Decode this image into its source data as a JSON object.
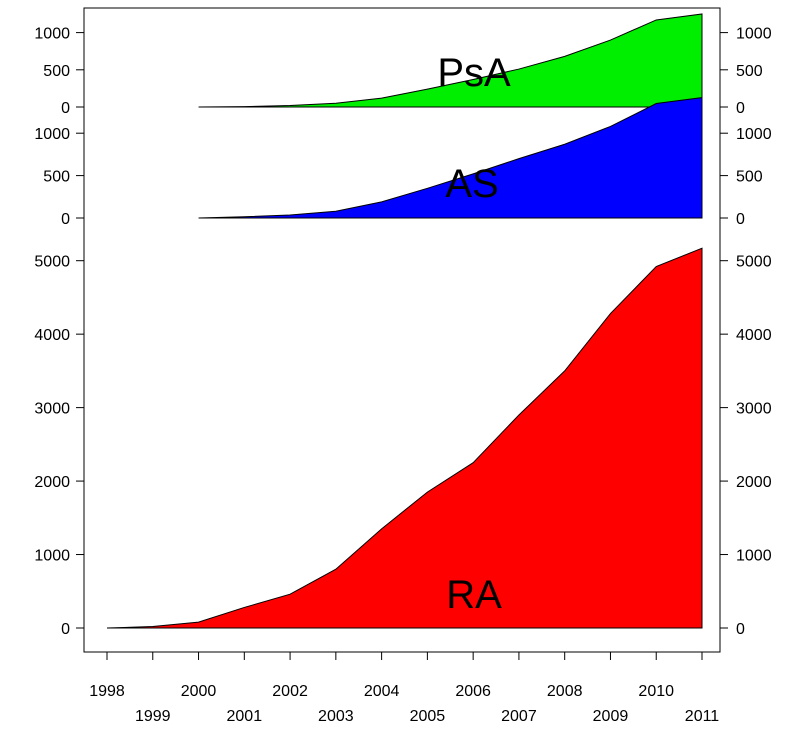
{
  "chart_data": {
    "type": "area",
    "x": [
      1998,
      1999,
      2000,
      2001,
      2002,
      2003,
      2004,
      2005,
      2006,
      2007,
      2008,
      2009,
      2010,
      2011
    ],
    "x_tick_labels": [
      "1998",
      "1999",
      "2000",
      "2001",
      "2002",
      "2003",
      "2004",
      "2005",
      "2006",
      "2007",
      "2008",
      "2009",
      "2010",
      "2011"
    ],
    "xlim": [
      1998,
      2011
    ],
    "grid": false,
    "legend": "none",
    "panels": [
      {
        "name": "PsA",
        "color": "#00ee00",
        "ylim": [
          0,
          1250
        ],
        "y_ticks": [
          0,
          500,
          1000
        ],
        "y_tick_labels": [
          "0",
          "500",
          "1000"
        ],
        "x": [
          2000,
          2001,
          2002,
          2003,
          2004,
          2005,
          2006,
          2007,
          2008,
          2009,
          2010,
          2011
        ],
        "values": [
          0,
          5,
          20,
          50,
          120,
          240,
          370,
          510,
          680,
          900,
          1170,
          1250
        ]
      },
      {
        "name": "AS",
        "color": "#0000ff",
        "ylim": [
          0,
          1250
        ],
        "y_ticks": [
          0,
          500,
          1000
        ],
        "y_tick_labels": [
          "0",
          "500",
          "1000"
        ],
        "x": [
          2000,
          2001,
          2002,
          2003,
          2004,
          2005,
          2006,
          2007,
          2008,
          2009,
          2010,
          2011
        ],
        "values": [
          0,
          15,
          35,
          80,
          190,
          350,
          520,
          700,
          870,
          1080,
          1350,
          1420
        ]
      },
      {
        "name": "RA",
        "color": "#ff0000",
        "ylim": [
          0,
          5200
        ],
        "y_ticks": [
          0,
          1000,
          2000,
          3000,
          4000,
          5000
        ],
        "y_tick_labels": [
          "0",
          "1000",
          "2000",
          "3000",
          "4000",
          "5000"
        ],
        "x": [
          1998,
          1999,
          2000,
          2001,
          2002,
          2003,
          2004,
          2005,
          2006,
          2007,
          2008,
          2009,
          2010,
          2011
        ],
        "values": [
          0,
          20,
          80,
          280,
          460,
          800,
          1350,
          1850,
          2250,
          2900,
          3500,
          4280,
          4920,
          5170
        ]
      }
    ]
  }
}
